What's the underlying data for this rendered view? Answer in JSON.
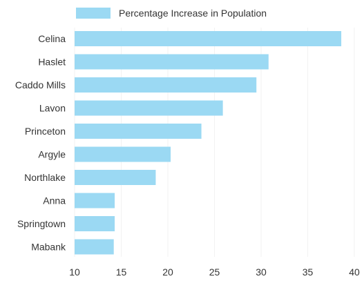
{
  "chart_data": {
    "type": "bar",
    "orientation": "horizontal",
    "title": "",
    "xlabel": "",
    "ylabel": "",
    "categories": [
      "Celina",
      "Haslet",
      "Caddo Mills",
      "Lavon",
      "Princeton",
      "Argyle",
      "Northlake",
      "Anna",
      "Springtown",
      "Mabank"
    ],
    "series": [
      {
        "name": "Percentage Increase in Population",
        "color": "#9bd9f3",
        "values": [
          38.6,
          30.8,
          29.5,
          25.9,
          23.6,
          20.3,
          18.7,
          14.3,
          14.3,
          14.2
        ]
      }
    ],
    "xlim": [
      10,
      40
    ],
    "xticks": [
      10,
      15,
      20,
      25,
      30,
      35,
      40
    ],
    "grid": true,
    "legend": "top"
  }
}
